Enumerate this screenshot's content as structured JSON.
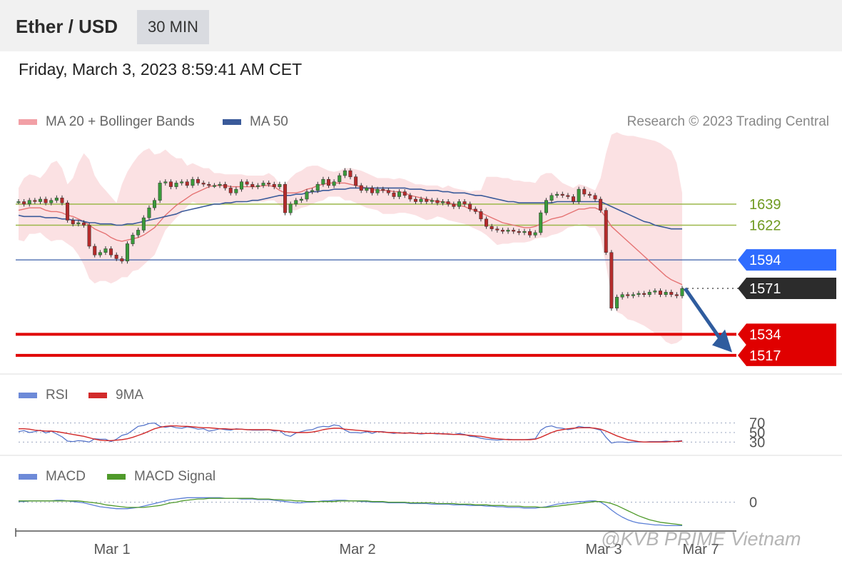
{
  "header": {
    "symbol": "Ether / USD",
    "timeframe": "30 MIN",
    "datetime": "Friday, March 3, 2023 8:59:41 AM CET"
  },
  "legend": {
    "ma20_label": "MA 20 + Bollinger Bands",
    "ma50_label": "MA 50",
    "copyright": "Research © 2023 Trading Central",
    "rsi_label": "RSI",
    "rsi_ma_label": "9MA",
    "macd_label": "MACD",
    "macd_signal_label": "MACD Signal"
  },
  "colors": {
    "bollinger": "#f7c8cc",
    "ma20": "#e57373",
    "ma50": "#3a5a9a",
    "green_level": "#9bb74a",
    "blue_level": "#2f6cff",
    "red_level": "#e00000",
    "price_tag": "#2c2c2c",
    "candle_up": "#3a9a3a",
    "candle_down": "#b52b2b",
    "rsi": "#4f6fc8",
    "rsi_ma": "#d22a2a",
    "macd": "#5b7fd6",
    "macd_signal": "#4f9a2a"
  },
  "watermark": "@KVB PRIME Vietnam",
  "chart_data": [
    {
      "type": "candlestick",
      "x_ticks": [
        "Mar 1",
        "Mar 2",
        "Mar 3",
        "Mar 7"
      ],
      "ylim": [
        1510,
        1700
      ],
      "price_levels": [
        {
          "value": 1639,
          "label": "1639",
          "role": "resistance"
        },
        {
          "value": 1622,
          "label": "1622",
          "role": "resistance"
        },
        {
          "value": 1594,
          "label": "1594",
          "role": "pivot"
        },
        {
          "value": 1571,
          "label": "1571",
          "role": "last"
        },
        {
          "value": 1534,
          "label": "1534",
          "role": "support"
        },
        {
          "value": 1517,
          "label": "1517",
          "role": "support"
        }
      ],
      "close": [
        1641,
        1639,
        1642,
        1641,
        1643,
        1640,
        1642,
        1644,
        1640,
        1626,
        1623,
        1624,
        1622,
        1605,
        1598,
        1600,
        1603,
        1598,
        1595,
        1593,
        1607,
        1614,
        1618,
        1628,
        1636,
        1642,
        1656,
        1657,
        1653,
        1656,
        1657,
        1654,
        1659,
        1656,
        1655,
        1654,
        1654,
        1655,
        1652,
        1648,
        1651,
        1657,
        1655,
        1653,
        1654,
        1656,
        1655,
        1653,
        1655,
        1632,
        1639,
        1642,
        1643,
        1649,
        1650,
        1655,
        1659,
        1654,
        1657,
        1662,
        1666,
        1661,
        1654,
        1650,
        1652,
        1648,
        1651,
        1650,
        1648,
        1645,
        1649,
        1646,
        1643,
        1641,
        1643,
        1641,
        1642,
        1640,
        1641,
        1639,
        1637,
        1641,
        1639,
        1635,
        1633,
        1627,
        1621,
        1619,
        1618,
        1617,
        1618,
        1617,
        1616,
        1617,
        1614,
        1616,
        1632,
        1642,
        1646,
        1647,
        1646,
        1645,
        1641,
        1651,
        1647,
        1646,
        1643,
        1634,
        1600,
        1555,
        1564,
        1566,
        1565,
        1566,
        1567,
        1566,
        1568,
        1569,
        1566,
        1568,
        1566,
        1565,
        1571
      ],
      "bb_upper": [
        1652,
        1660,
        1663,
        1662,
        1660,
        1665,
        1672,
        1674,
        1668,
        1655,
        1660,
        1672,
        1680,
        1675,
        1662,
        1655,
        1650,
        1645,
        1640,
        1655,
        1665,
        1672,
        1678,
        1682,
        1684,
        1679,
        1680,
        1683,
        1679,
        1676,
        1676,
        1670,
        1672,
        1670,
        1668,
        1668,
        1664,
        1664,
        1663,
        1663,
        1663,
        1663,
        1662,
        1662,
        1662,
        1662,
        1664,
        1661,
        1655,
        1655,
        1660,
        1664,
        1666,
        1669,
        1670,
        1670,
        1668,
        1666,
        1665,
        1666,
        1668,
        1668,
        1667,
        1666,
        1664,
        1662,
        1660,
        1660,
        1660,
        1659,
        1660,
        1659,
        1657,
        1655,
        1655,
        1654,
        1654,
        1654,
        1652,
        1654,
        1652,
        1651,
        1650,
        1649,
        1650,
        1650,
        1661,
        1661,
        1661,
        1660,
        1660,
        1658,
        1658,
        1657,
        1657,
        1656,
        1662,
        1664,
        1664,
        1660,
        1656,
        1654,
        1652,
        1655,
        1654,
        1652,
        1650,
        1660,
        1680,
        1695,
        1697,
        1695,
        1694,
        1694,
        1693,
        1692,
        1691,
        1690,
        1688,
        1685,
        1682,
        1672,
        1648
      ],
      "bb_lower": [
        1610,
        1609,
        1615,
        1615,
        1616,
        1612,
        1609,
        1610,
        1610,
        1607,
        1604,
        1598,
        1590,
        1579,
        1575,
        1577,
        1577,
        1575,
        1577,
        1580,
        1580,
        1585,
        1586,
        1590,
        1594,
        1598,
        1608,
        1618,
        1623,
        1628,
        1632,
        1637,
        1641,
        1639,
        1639,
        1640,
        1640,
        1640,
        1640,
        1639,
        1640,
        1640,
        1641,
        1641,
        1641,
        1641,
        1642,
        1642,
        1638,
        1634,
        1634,
        1634,
        1636,
        1637,
        1639,
        1641,
        1642,
        1645,
        1645,
        1645,
        1642,
        1642,
        1640,
        1638,
        1636,
        1635,
        1634,
        1631,
        1631,
        1631,
        1632,
        1632,
        1631,
        1630,
        1628,
        1626,
        1627,
        1629,
        1628,
        1626,
        1625,
        1624,
        1623,
        1621,
        1619,
        1617,
        1614,
        1610,
        1606,
        1607,
        1607,
        1608,
        1608,
        1608,
        1609,
        1611,
        1612,
        1612,
        1614,
        1615,
        1617,
        1620,
        1621,
        1623,
        1622,
        1620,
        1620,
        1612,
        1590,
        1565,
        1552,
        1550,
        1546,
        1545,
        1543,
        1541,
        1538,
        1535,
        1533,
        1528,
        1526,
        1527,
        1530
      ],
      "ma20": [
        1634,
        1635,
        1636,
        1636,
        1636,
        1634,
        1633,
        1633,
        1632,
        1630,
        1629,
        1627,
        1625,
        1622,
        1619,
        1617,
        1615,
        1612,
        1610,
        1609,
        1610,
        1611,
        1612,
        1614,
        1617,
        1620,
        1625,
        1630,
        1634,
        1638,
        1641,
        1644,
        1647,
        1649,
        1651,
        1653,
        1654,
        1654,
        1654,
        1653,
        1653,
        1653,
        1653,
        1653,
        1653,
        1654,
        1654,
        1653,
        1650,
        1648,
        1648,
        1648,
        1649,
        1651,
        1652,
        1654,
        1655,
        1656,
        1656,
        1656,
        1656,
        1655,
        1654,
        1653,
        1652,
        1651,
        1650,
        1650,
        1650,
        1649,
        1649,
        1648,
        1646,
        1645,
        1644,
        1643,
        1642,
        1641,
        1641,
        1640,
        1639,
        1638,
        1637,
        1635,
        1634,
        1632,
        1630,
        1628,
        1626,
        1624,
        1623,
        1622,
        1621,
        1620,
        1620,
        1621,
        1623,
        1625,
        1627,
        1628,
        1629,
        1631,
        1633,
        1635,
        1635,
        1636,
        1636,
        1634,
        1628,
        1621,
        1617,
        1613,
        1609,
        1605,
        1601,
        1597,
        1593,
        1589,
        1585,
        1581,
        1578,
        1576,
        1574
      ],
      "ma50": [
        1630,
        1629,
        1629,
        1629,
        1629,
        1628,
        1628,
        1628,
        1627,
        1627,
        1626,
        1626,
        1625,
        1624,
        1624,
        1623,
        1623,
        1623,
        1622,
        1622,
        1623,
        1623,
        1624,
        1625,
        1626,
        1627,
        1628,
        1629,
        1630,
        1631,
        1633,
        1634,
        1635,
        1636,
        1637,
        1638,
        1639,
        1639,
        1640,
        1640,
        1641,
        1641,
        1641,
        1642,
        1642,
        1643,
        1644,
        1645,
        1646,
        1646,
        1646,
        1647,
        1647,
        1648,
        1649,
        1649,
        1650,
        1650,
        1651,
        1651,
        1651,
        1652,
        1652,
        1652,
        1652,
        1652,
        1652,
        1652,
        1652,
        1652,
        1652,
        1652,
        1651,
        1651,
        1651,
        1650,
        1650,
        1650,
        1649,
        1649,
        1648,
        1648,
        1648,
        1647,
        1646,
        1646,
        1645,
        1644,
        1643,
        1642,
        1641,
        1641,
        1640,
        1640,
        1640,
        1640,
        1640,
        1640,
        1640,
        1641,
        1641,
        1641,
        1641,
        1641,
        1641,
        1641,
        1641,
        1641,
        1639,
        1637,
        1635,
        1633,
        1631,
        1629,
        1627,
        1625,
        1624,
        1622,
        1621,
        1620,
        1619,
        1619,
        1619
      ]
    },
    {
      "type": "line",
      "name": "RSI",
      "ylim": [
        20,
        80
      ],
      "y_ticks": [
        70,
        50,
        30
      ],
      "series": [
        {
          "name": "RSI",
          "values": [
            52,
            54,
            50,
            52,
            55,
            49,
            53,
            47,
            41,
            32,
            31,
            33,
            32,
            30,
            37,
            36,
            36,
            31,
            36,
            44,
            47,
            55,
            63,
            65,
            69,
            70,
            63,
            61,
            63,
            60,
            59,
            62,
            60,
            57,
            58,
            53,
            55,
            58,
            56,
            55,
            58,
            57,
            56,
            55,
            55,
            55,
            56,
            53,
            54,
            45,
            42,
            49,
            52,
            55,
            56,
            61,
            63,
            62,
            66,
            64,
            55,
            50,
            50,
            49,
            52,
            48,
            52,
            52,
            50,
            48,
            50,
            48,
            50,
            48,
            47,
            48,
            48,
            47,
            48,
            46,
            46,
            48,
            46,
            42,
            41,
            38,
            36,
            35,
            34,
            35,
            36,
            35,
            35,
            35,
            36,
            37,
            55,
            62,
            64,
            60,
            59,
            56,
            58,
            63,
            61,
            61,
            58,
            55,
            40,
            28,
            30,
            30,
            29,
            30,
            30,
            30,
            31,
            31,
            31,
            32,
            31,
            32,
            33
          ]
        },
        {
          "name": "9MA",
          "values": [
            58,
            58,
            57,
            55,
            54,
            53,
            53,
            52,
            50,
            48,
            46,
            44,
            42,
            39,
            36,
            34,
            33,
            33,
            34,
            35,
            37,
            40,
            44,
            48,
            53,
            58,
            61,
            63,
            64,
            64,
            63,
            63,
            62,
            61,
            60,
            60,
            59,
            58,
            58,
            57,
            57,
            57,
            56,
            56,
            56,
            56,
            56,
            55,
            54,
            52,
            51,
            50,
            50,
            50,
            51,
            53,
            56,
            58,
            59,
            59,
            57,
            56,
            55,
            54,
            53,
            52,
            52,
            51,
            50,
            50,
            49,
            49,
            49,
            48,
            48,
            48,
            48,
            48,
            47,
            47,
            46,
            46,
            45,
            44,
            43,
            42,
            40,
            38,
            37,
            36,
            35,
            35,
            35,
            35,
            35,
            36,
            40,
            45,
            50,
            54,
            56,
            58,
            59,
            60,
            60,
            60,
            59,
            57,
            53,
            48,
            43,
            39,
            35,
            33,
            31,
            30,
            30,
            30,
            30,
            30,
            31,
            31,
            32
          ]
        }
      ]
    },
    {
      "type": "line",
      "name": "MACD",
      "ylim": [
        -40,
        15
      ],
      "y_ticks": [
        0
      ],
      "series": [
        {
          "name": "MACD",
          "values": [
            1,
            1,
            2,
            2,
            2,
            2,
            2,
            3,
            3,
            2,
            1,
            0,
            -1,
            -3,
            -5,
            -7,
            -8,
            -9,
            -10,
            -10,
            -10,
            -9,
            -8,
            -6,
            -4,
            -2,
            0,
            2,
            4,
            5,
            6,
            7,
            7,
            7,
            7,
            7,
            7,
            7,
            6,
            6,
            6,
            5,
            5,
            5,
            4,
            4,
            4,
            3,
            2,
            1,
            0,
            -1,
            -1,
            0,
            0,
            1,
            2,
            2,
            3,
            3,
            3,
            2,
            2,
            1,
            1,
            0,
            0,
            0,
            -1,
            -1,
            -1,
            -1,
            -2,
            -2,
            -2,
            -2,
            -3,
            -3,
            -3,
            -3,
            -4,
            -4,
            -4,
            -5,
            -5,
            -5,
            -6,
            -6,
            -7,
            -7,
            -8,
            -8,
            -8,
            -9,
            -9,
            -9,
            -8,
            -7,
            -5,
            -3,
            -2,
            -1,
            0,
            1,
            1,
            2,
            2,
            0,
            -5,
            -12,
            -18,
            -23,
            -27,
            -30,
            -32,
            -33,
            -34,
            -35,
            -35,
            -36,
            -36,
            -36,
            -36
          ]
        },
        {
          "name": "MACD Signal",
          "values": [
            2,
            2,
            2,
            2,
            2,
            2,
            2,
            2,
            2,
            2,
            2,
            2,
            1,
            0,
            -1,
            -2,
            -4,
            -5,
            -6,
            -7,
            -8,
            -8,
            -8,
            -8,
            -7,
            -6,
            -5,
            -3,
            -1,
            0,
            2,
            3,
            4,
            5,
            5,
            6,
            6,
            6,
            6,
            6,
            6,
            6,
            6,
            6,
            5,
            5,
            5,
            4,
            4,
            3,
            3,
            2,
            2,
            1,
            1,
            1,
            1,
            1,
            1,
            2,
            2,
            2,
            2,
            2,
            2,
            1,
            1,
            1,
            0,
            0,
            0,
            0,
            -1,
            -1,
            -1,
            -1,
            -1,
            -2,
            -2,
            -2,
            -2,
            -3,
            -3,
            -3,
            -4,
            -4,
            -4,
            -5,
            -5,
            -5,
            -6,
            -6,
            -6,
            -7,
            -7,
            -7,
            -8,
            -8,
            -7,
            -6,
            -5,
            -4,
            -3,
            -2,
            -1,
            0,
            1,
            1,
            0,
            -2,
            -5,
            -9,
            -13,
            -17,
            -21,
            -24,
            -27,
            -29,
            -31,
            -32,
            -33,
            -34,
            -35
          ]
        }
      ]
    }
  ]
}
